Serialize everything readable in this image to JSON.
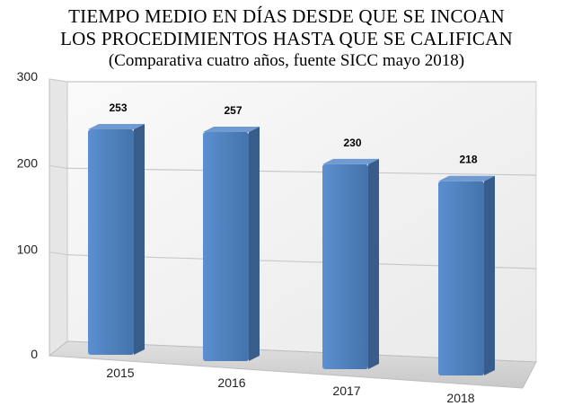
{
  "title": {
    "line1": "TIEMPO MEDIO EN DÍAS DESDE QUE SE INCOAN",
    "line2": "LOS PROCEDIMIENTOS HASTA QUE SE CALIFICAN",
    "subtitle": "(Comparativa cuatro años, fuente SICC mayo 2018)"
  },
  "chart_data": {
    "type": "bar",
    "style": "3d-perspective",
    "categories": [
      "2015",
      "2016",
      "2017",
      "2018"
    ],
    "values": [
      253,
      257,
      230,
      218
    ],
    "data_labels": [
      "253",
      "257",
      "230",
      "218"
    ],
    "y_ticks": [
      "0",
      "100",
      "200",
      "300"
    ],
    "ylim": [
      0,
      300
    ],
    "grid": true,
    "legend": "none",
    "colors": {
      "bar_front": "#4f81bd",
      "bar_side": "#385d8a",
      "bar_top": "#6f9bd2",
      "gridline": "#c8c8c8",
      "back_wall": "#f2f2f2",
      "floor": "#d9d9d9"
    }
  }
}
